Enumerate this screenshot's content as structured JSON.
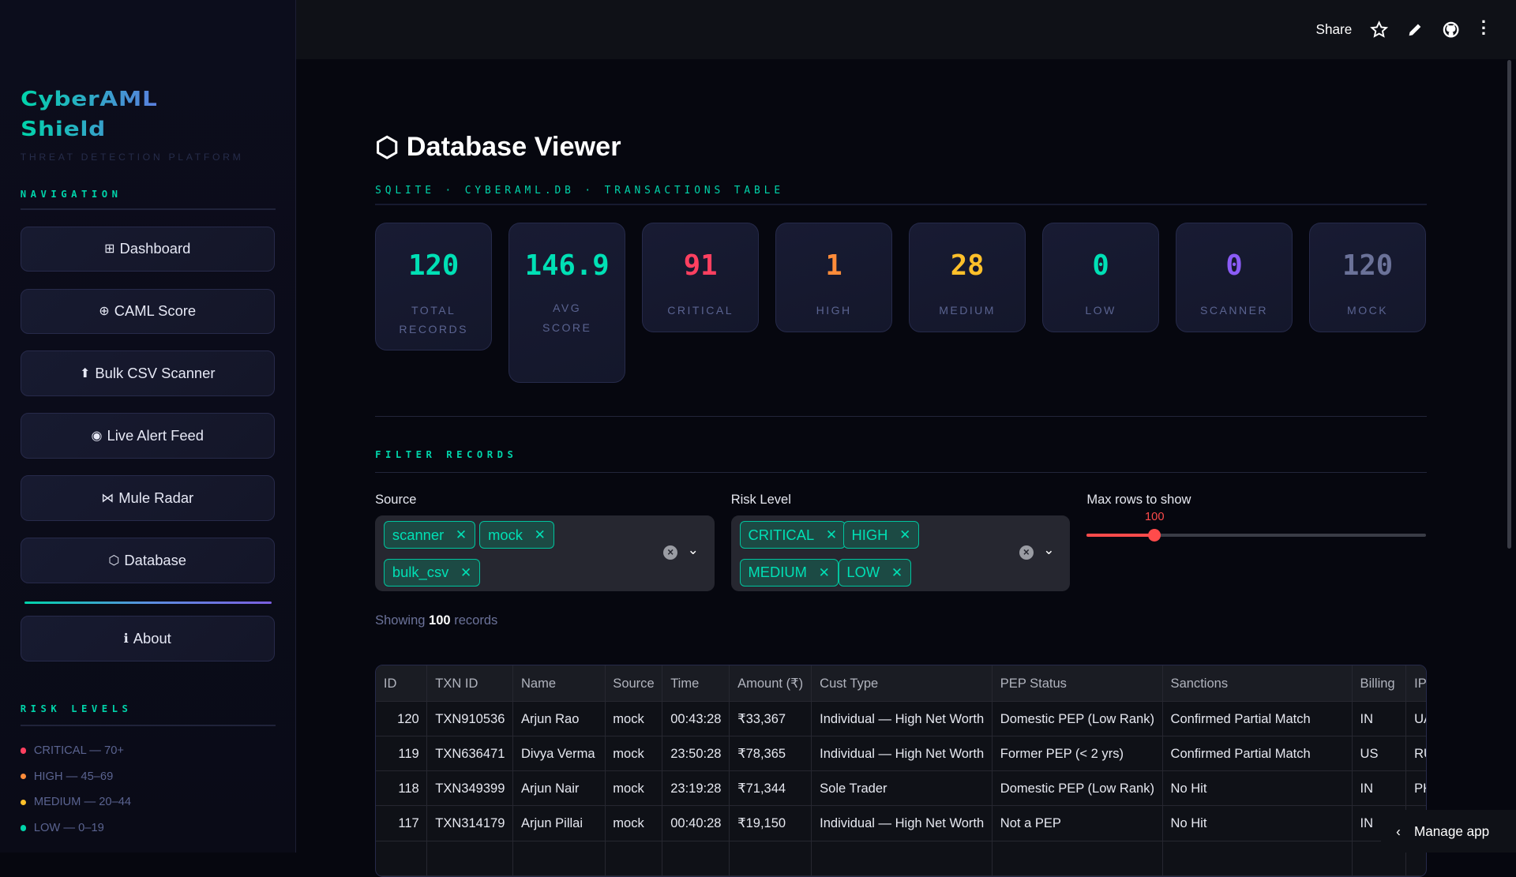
{
  "sidebar": {
    "logo_line1": "CyberAML",
    "logo_line2": "Shield",
    "tagline": "THREAT DETECTION PLATFORM",
    "nav_title": "NAVIGATION",
    "nav": [
      {
        "icon": "⊞",
        "label": "Dashboard"
      },
      {
        "icon": "⊕",
        "label": "CAML Score"
      },
      {
        "icon": "⬆",
        "label": "Bulk CSV Scanner"
      },
      {
        "icon": "◉",
        "label": "Live Alert Feed"
      },
      {
        "icon": "⋈",
        "label": "Mule Radar"
      },
      {
        "icon": "⬡",
        "label": "Database"
      }
    ],
    "about": {
      "icon": "ℹ",
      "label": "About"
    },
    "risk_title": "RISK LEVELS",
    "risk_levels": [
      {
        "label": "CRITICAL — 70+",
        "color": "#ff4060"
      },
      {
        "label": "HIGH — 45–69",
        "color": "#ff8c3a"
      },
      {
        "label": "MEDIUM — 20–44",
        "color": "#ffc02a"
      },
      {
        "label": "LOW — 0–19",
        "color": "#00d4aa"
      }
    ]
  },
  "topbar": {
    "share": "Share",
    "icons": [
      "star-icon",
      "pencil-icon",
      "github-icon",
      "more-vertical-icon"
    ]
  },
  "main": {
    "title_icon": "⬡",
    "title": "Database Viewer",
    "subtitle": "SQLITE · CYBERAML.DB · TRANSACTIONS TABLE",
    "stats": [
      {
        "value": "120",
        "label": "TOTAL RECORDS",
        "color": "#00e0b5"
      },
      {
        "value": "146.9",
        "label": "AVG SCORE",
        "color": "#00e0b5"
      },
      {
        "value": "91",
        "label": "CRITICAL",
        "color": "#ff4060"
      },
      {
        "value": "1",
        "label": "HIGH",
        "color": "#ff8c3a"
      },
      {
        "value": "28",
        "label": "MEDIUM",
        "color": "#ffc02a"
      },
      {
        "value": "0",
        "label": "LOW",
        "color": "#00e0b5"
      },
      {
        "value": "0",
        "label": "SCANNER",
        "color": "#8b5cf6"
      },
      {
        "value": "120",
        "label": "MOCK",
        "color": "#6b7299"
      }
    ],
    "filter_title": "FILTER RECORDS",
    "source": {
      "label": "Source",
      "selected": [
        "scanner",
        "mock",
        "bulk_csv"
      ]
    },
    "risk": {
      "label": "Risk Level",
      "selected": [
        "CRITICAL",
        "HIGH",
        "MEDIUM",
        "LOW"
      ]
    },
    "max_rows": {
      "label": "Max rows to show",
      "value": "100",
      "fill_fraction": 0.2,
      "color": "#ff4b4b"
    },
    "showing_prefix": "Showing",
    "showing_count": "100",
    "showing_suffix": "records",
    "table": {
      "columns": [
        "ID",
        "TXN ID",
        "Name",
        "Source",
        "Time",
        "Amount (₹)",
        "Cust Type",
        "PEP Status",
        "Sanctions",
        "Billing",
        "IP"
      ],
      "rows": [
        [
          "120",
          "TXN910536",
          "Arjun Rao",
          "mock",
          "00:43:28",
          "₹33,367",
          "Individual — High Net Worth",
          "Domestic PEP (Low Rank)",
          "Confirmed Partial Match",
          "IN",
          "UA"
        ],
        [
          "119",
          "TXN636471",
          "Divya Verma",
          "mock",
          "23:50:28",
          "₹78,365",
          "Individual — High Net Worth",
          "Former PEP (< 2 yrs)",
          "Confirmed Partial Match",
          "US",
          "RU"
        ],
        [
          "118",
          "TXN349399",
          "Arjun Nair",
          "mock",
          "23:19:28",
          "₹71,344",
          "Sole Trader",
          "Domestic PEP (Low Rank)",
          "No Hit",
          "IN",
          "PK"
        ],
        [
          "117",
          "TXN314179",
          "Arjun Pillai",
          "mock",
          "00:40:28",
          "₹19,150",
          "Individual — High Net Worth",
          "Not a PEP",
          "No Hit",
          "IN",
          ""
        ]
      ]
    }
  },
  "manage_app": "Manage app"
}
